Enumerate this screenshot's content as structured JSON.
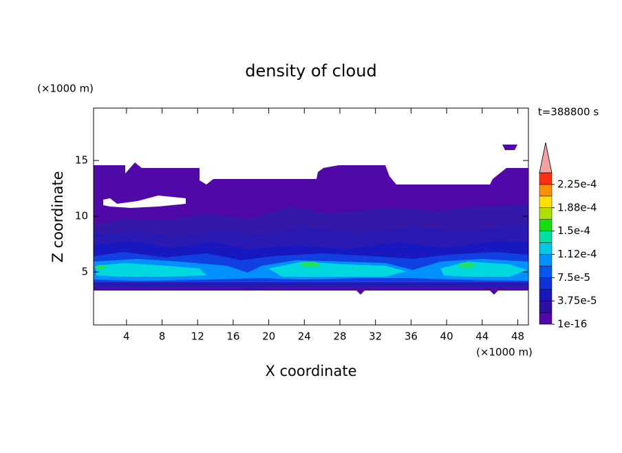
{
  "chart_data": {
    "type": "contour",
    "title": "density of cloud",
    "x_label": "X coordinate",
    "y_label": "Z coordinate",
    "x_unit": "(×1000 m)",
    "y_unit": "(×1000 m)",
    "annotation": "t=388800 s",
    "xlim": [
      0.3,
      49.2
    ],
    "ylim": [
      0.25,
      19.7
    ],
    "xticks": [
      4,
      8,
      12,
      16,
      20,
      24,
      28,
      32,
      36,
      40,
      44,
      48
    ],
    "yticks": [
      5,
      10,
      15
    ],
    "colorbar": {
      "lim": [
        1e-16,
        0.00024375
      ],
      "colors": [
        "#5008a8",
        "#2c10a0",
        "#1818b8",
        "#1030d8",
        "#0058f0",
        "#0090ff",
        "#00c8e8",
        "#00e0a0",
        "#10e010",
        "#b0e000",
        "#ffe000",
        "#ff9000",
        "#ff3010"
      ],
      "extend_color": "#f4a0a0",
      "ticks": [
        {
          "value": 1e-16,
          "label": "1e-16"
        },
        {
          "value": 3.75e-05,
          "label": "3.75e-5"
        },
        {
          "value": 7.5e-05,
          "label": "7.5e-5"
        },
        {
          "value": 0.0001125,
          "label": "1.12e-4"
        },
        {
          "value": 0.00015,
          "label": "1.5e-4"
        },
        {
          "value": 0.0001875,
          "label": "1.88e-4"
        },
        {
          "value": 0.000225,
          "label": "2.25e-4"
        }
      ]
    }
  }
}
